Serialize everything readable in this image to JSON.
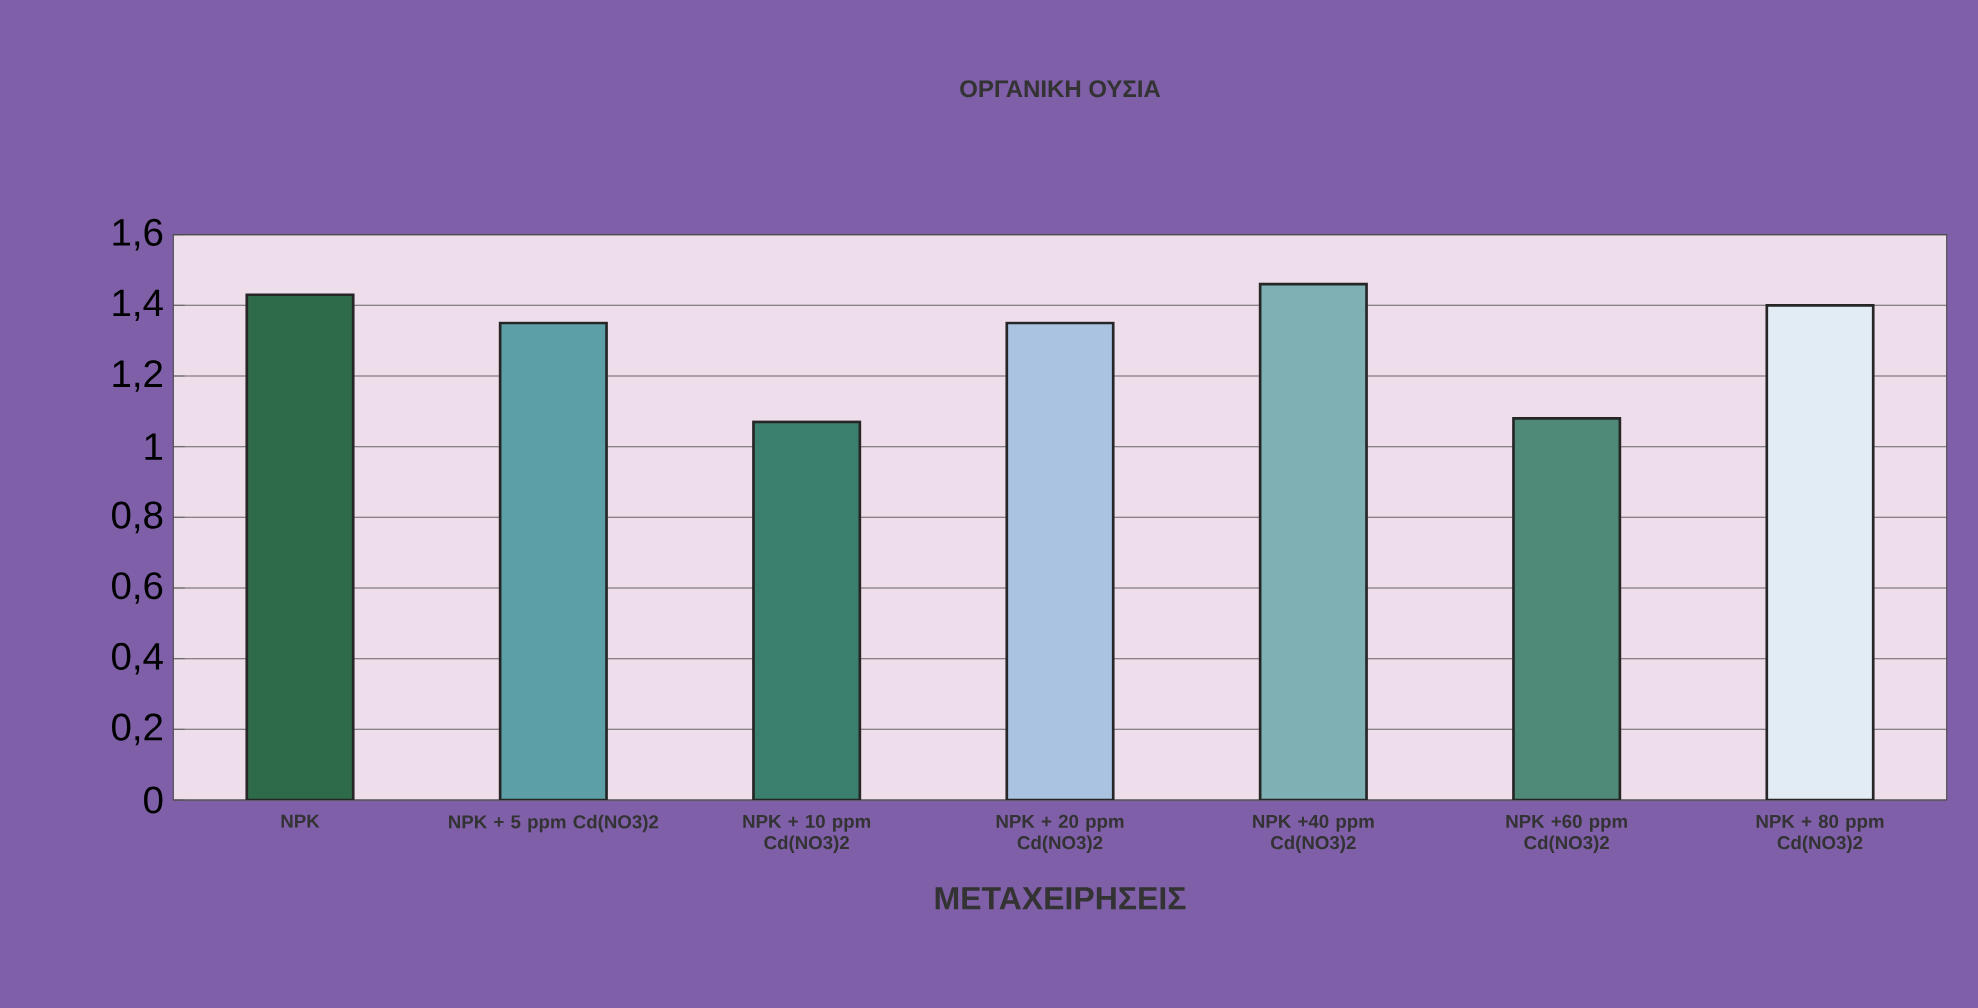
{
  "chart_data": {
    "type": "bar",
    "title": "ΟΡΓΑΝΙΚΗ ΟΥΣΙΑ",
    "xlabel": "ΜΕΤΑΧΕΙΡΗΣΕΙΣ",
    "categories": [
      "NPK",
      "NPK + 5 ppm Cd(NO3)2",
      "NPK + 10 ppm Cd(NO3)2",
      "NPK + 20 ppm Cd(NO3)2",
      "NPK +40 ppm Cd(NO3)2",
      "NPK +60 ppm Cd(NO3)2",
      "NPK + 80 ppm Cd(NO3)2"
    ],
    "values": [
      1.43,
      1.35,
      1.07,
      1.35,
      1.46,
      1.08,
      1.4
    ],
    "colors": [
      "#2e6b4a",
      "#5d9fa6",
      "#3b7f6e",
      "#a9c3e0",
      "#7fb0b4",
      "#4f8a78",
      "#e2ecf5"
    ],
    "ylim": [
      0,
      1.6
    ],
    "yticks": [
      0,
      {
        "value": 0.2,
        "label": "0,2"
      },
      {
        "value": 0.4,
        "label": "0,4"
      },
      {
        "value": 0.6,
        "label": "0,6"
      },
      {
        "value": 0.8,
        "label": "0,8"
      },
      1,
      {
        "value": 1.2,
        "label": "1,2"
      },
      {
        "value": 1.4,
        "label": "1,4"
      },
      {
        "value": 1.6,
        "label": "1,6"
      }
    ],
    "grid": "y"
  }
}
